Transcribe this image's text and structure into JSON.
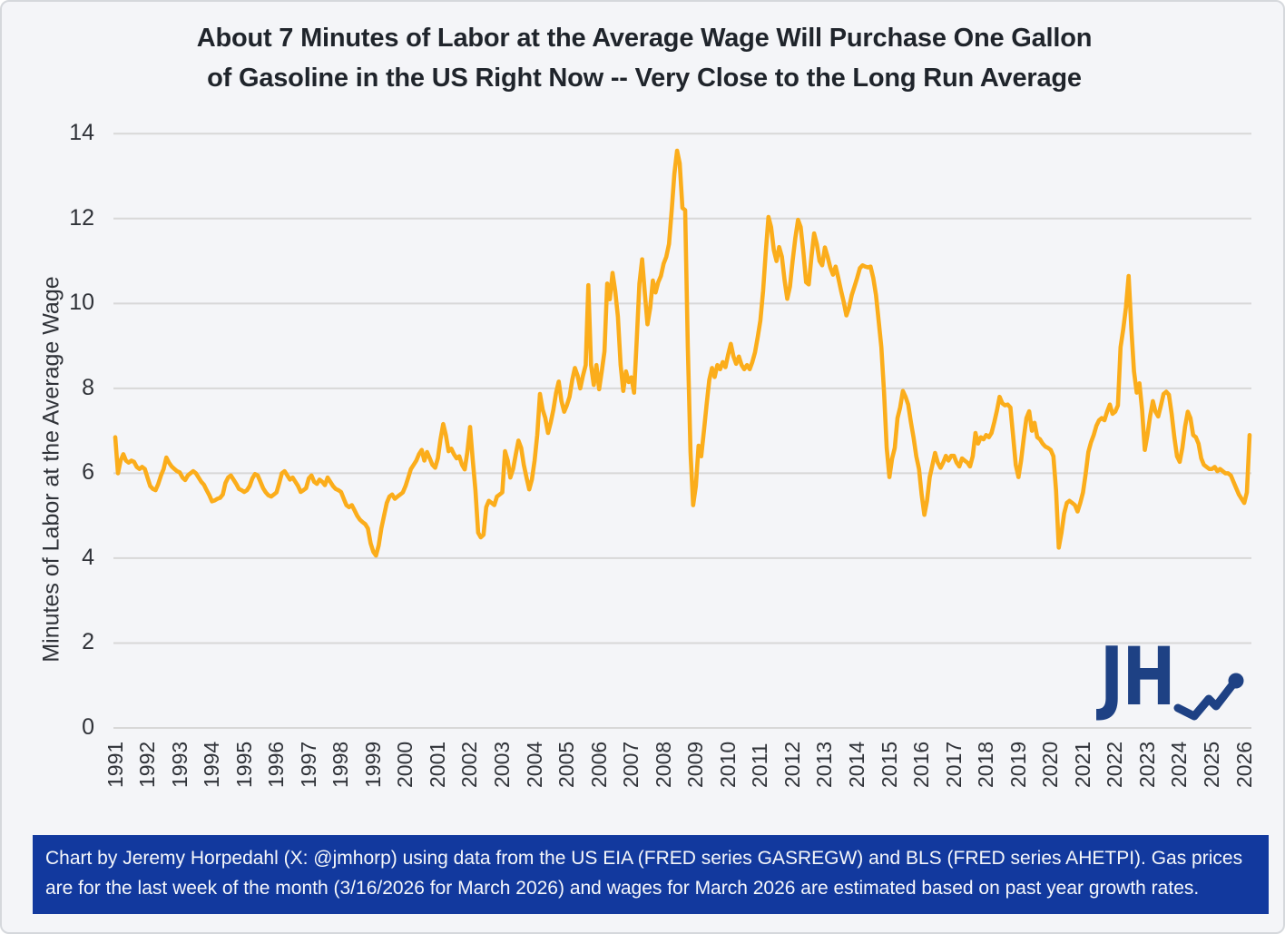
{
  "title": {
    "line1": "About 7 Minutes of Labor at the Average Wage Will Purchase One Gallon",
    "line2": "of Gasoline in the US Right Now -- Very Close to the Long Run Average"
  },
  "y_axis": {
    "label": "Minutes of Labor at the Average Wage",
    "ticks": [
      0,
      2,
      4,
      6,
      8,
      10,
      12,
      14
    ]
  },
  "x_axis": {
    "ticks": [
      "1991",
      "1992",
      "1993",
      "1994",
      "1995",
      "1996",
      "1997",
      "1998",
      "1999",
      "2000",
      "2001",
      "2002",
      "2003",
      "2004",
      "2005",
      "2006",
      "2007",
      "2008",
      "2009",
      "2010",
      "2011",
      "2012",
      "2013",
      "2014",
      "2015",
      "2016",
      "2017",
      "2018",
      "2019",
      "2020",
      "2021",
      "2022",
      "2023",
      "2024",
      "2025",
      "2026"
    ]
  },
  "footer": {
    "text": "Chart by Jeremy Horpedahl (X: @jmhorp) using data from the US EIA (FRED series GASREGW) and BLS (FRED series AHETPI). Gas prices are for the last week of the month (3/16/2026 for March 2026) and wages for March 2026 are estimated based on past year growth rates."
  },
  "logo": {
    "text": "JH"
  },
  "colors": {
    "background": "#F4F5F8",
    "grid": "#D8D8D8",
    "line": "#FBAD1B",
    "title_text": "#1F242B",
    "tick_text": "#2F3238",
    "footer_bg": "#12399E",
    "footer_text": "#F5F7FA",
    "logo_blue": "#1E4184"
  },
  "chart_data": {
    "type": "line",
    "title": "About 7 Minutes of Labor at the Average Wage Will Purchase One Gallon of Gasoline in the US Right Now -- Very Close to the Long Run Average",
    "xlabel": "",
    "ylabel": "Minutes of Labor at the Average Wage",
    "ylim": [
      0,
      14
    ],
    "x_range": [
      "1991-01",
      "2026-03"
    ],
    "frequency": "monthly",
    "grid": "horizontal",
    "legend_position": "none",
    "series": [
      {
        "name": "Minutes of labor at the average wage to buy one gallon of gasoline",
        "values": [
          6.85,
          6.0,
          6.3,
          6.45,
          6.3,
          6.25,
          6.3,
          6.27,
          6.15,
          6.1,
          6.15,
          6.1,
          5.9,
          5.7,
          5.63,
          5.6,
          5.75,
          5.95,
          6.1,
          6.37,
          6.25,
          6.16,
          6.1,
          6.05,
          6.02,
          5.9,
          5.84,
          5.95,
          6.0,
          6.05,
          6.0,
          5.9,
          5.8,
          5.73,
          5.6,
          5.48,
          5.34,
          5.36,
          5.4,
          5.42,
          5.5,
          5.77,
          5.9,
          5.95,
          5.85,
          5.75,
          5.63,
          5.6,
          5.56,
          5.6,
          5.7,
          5.88,
          5.98,
          5.95,
          5.8,
          5.65,
          5.55,
          5.48,
          5.45,
          5.5,
          5.55,
          5.77,
          6.0,
          6.05,
          5.95,
          5.85,
          5.9,
          5.8,
          5.7,
          5.56,
          5.6,
          5.65,
          5.88,
          5.95,
          5.8,
          5.75,
          5.85,
          5.8,
          5.72,
          5.9,
          5.8,
          5.7,
          5.63,
          5.6,
          5.56,
          5.4,
          5.25,
          5.2,
          5.25,
          5.13,
          5.0,
          4.91,
          4.85,
          4.8,
          4.7,
          4.35,
          4.15,
          4.06,
          4.3,
          4.7,
          5.0,
          5.3,
          5.45,
          5.5,
          5.4,
          5.45,
          5.5,
          5.55,
          5.7,
          5.9,
          6.1,
          6.2,
          6.3,
          6.45,
          6.55,
          6.3,
          6.5,
          6.35,
          6.2,
          6.13,
          6.35,
          6.8,
          7.16,
          6.9,
          6.52,
          6.58,
          6.45,
          6.35,
          6.4,
          6.2,
          6.09,
          6.5,
          7.09,
          6.3,
          5.6,
          4.6,
          4.49,
          4.55,
          5.2,
          5.35,
          5.3,
          5.25,
          5.45,
          5.5,
          5.55,
          6.52,
          6.3,
          5.9,
          6.1,
          6.45,
          6.77,
          6.6,
          6.2,
          5.9,
          5.62,
          5.85,
          6.3,
          6.9,
          7.87,
          7.5,
          7.3,
          6.95,
          7.2,
          7.5,
          7.9,
          8.16,
          7.7,
          7.45,
          7.6,
          7.8,
          8.2,
          8.48,
          8.3,
          8.0,
          8.3,
          8.55,
          10.43,
          8.55,
          8.08,
          8.55,
          7.98,
          8.4,
          8.87,
          10.47,
          10.1,
          10.72,
          10.3,
          9.69,
          8.55,
          7.94,
          8.4,
          8.15,
          8.26,
          7.9,
          9.12,
          10.47,
          11.04,
          10.26,
          9.51,
          9.9,
          10.54,
          10.26,
          10.5,
          10.65,
          10.94,
          11.1,
          11.4,
          12.2,
          13.05,
          13.6,
          13.3,
          12.25,
          12.2,
          9.0,
          6.5,
          5.25,
          5.7,
          6.65,
          6.4,
          7.0,
          7.63,
          8.2,
          8.48,
          8.27,
          8.55,
          8.45,
          8.62,
          8.5,
          8.8,
          9.05,
          8.75,
          8.58,
          8.75,
          8.55,
          8.45,
          8.55,
          8.45,
          8.62,
          8.85,
          9.2,
          9.6,
          10.3,
          11.2,
          12.04,
          11.8,
          11.26,
          11.0,
          11.33,
          11.1,
          10.54,
          10.11,
          10.4,
          11.0,
          11.54,
          11.97,
          11.8,
          11.2,
          10.5,
          10.45,
          11.1,
          11.65,
          11.4,
          11.0,
          10.9,
          11.32,
          11.1,
          10.85,
          10.68,
          10.87,
          10.6,
          10.3,
          10.04,
          9.72,
          9.9,
          10.2,
          10.4,
          10.6,
          10.83,
          10.9,
          10.87,
          10.85,
          10.87,
          10.6,
          10.2,
          9.6,
          8.97,
          7.9,
          6.6,
          5.91,
          6.34,
          6.6,
          7.3,
          7.55,
          7.94,
          7.8,
          7.62,
          7.2,
          6.84,
          6.4,
          6.1,
          5.5,
          5.02,
          5.35,
          5.91,
          6.2,
          6.48,
          6.25,
          6.13,
          6.25,
          6.41,
          6.3,
          6.41,
          6.41,
          6.25,
          6.16,
          6.35,
          6.3,
          6.25,
          6.16,
          6.4,
          6.95,
          6.7,
          6.85,
          6.8,
          6.9,
          6.85,
          6.95,
          7.2,
          7.48,
          7.8,
          7.65,
          7.6,
          7.62,
          7.55,
          6.9,
          6.2,
          5.91,
          6.3,
          6.84,
          7.3,
          7.46,
          7.0,
          7.19,
          6.85,
          6.8,
          6.7,
          6.63,
          6.6,
          6.55,
          6.4,
          5.6,
          4.25,
          4.6,
          5.05,
          5.3,
          5.35,
          5.3,
          5.25,
          5.1,
          5.3,
          5.55,
          5.98,
          6.5,
          6.73,
          6.9,
          7.12,
          7.25,
          7.3,
          7.25,
          7.45,
          7.62,
          7.4,
          7.45,
          7.6,
          8.97,
          9.4,
          9.9,
          10.65,
          9.4,
          8.4,
          7.9,
          8.12,
          7.5,
          6.55,
          6.9,
          7.35,
          7.7,
          7.45,
          7.34,
          7.6,
          7.87,
          7.92,
          7.85,
          7.4,
          6.84,
          6.4,
          6.27,
          6.6,
          7.1,
          7.45,
          7.3,
          6.9,
          6.85,
          6.7,
          6.35,
          6.2,
          6.15,
          6.1,
          6.1,
          6.15,
          6.05,
          6.1,
          6.05,
          6.0,
          6.0,
          5.95,
          5.8,
          5.65,
          5.5,
          5.4,
          5.3,
          5.55,
          6.9
        ]
      }
    ]
  }
}
